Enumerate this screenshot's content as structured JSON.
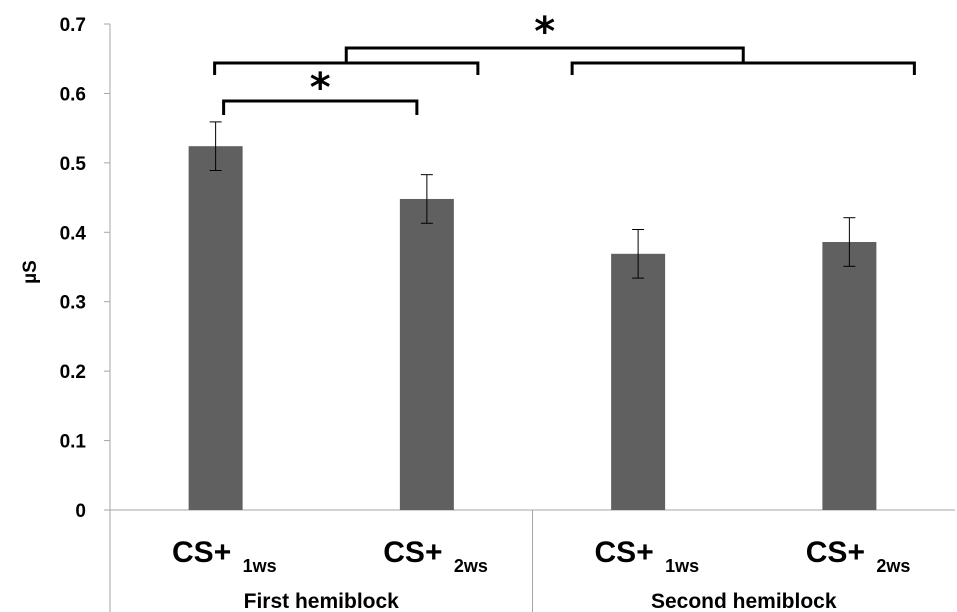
{
  "chart_data": {
    "type": "bar",
    "title": "",
    "ylabel": "µS",
    "xlabel": "",
    "ylim": [
      0,
      0.7
    ],
    "yticks": [
      "0",
      "0.1",
      "0.2",
      "0.3",
      "0.4",
      "0.5",
      "0.6",
      "0.7"
    ],
    "grid": false,
    "legend": "none",
    "bar_color": "#606060",
    "categories": [
      {
        "main": "CS+",
        "sub": "1ws",
        "group": "First hemiblock"
      },
      {
        "main": "CS+",
        "sub": "2ws",
        "group": "First hemiblock"
      },
      {
        "main": "CS+",
        "sub": "1ws",
        "group": "Second hemiblock"
      },
      {
        "main": "CS+",
        "sub": "2ws",
        "group": "Second hemiblock"
      }
    ],
    "groups": [
      "First hemiblock",
      "Second hemiblock"
    ],
    "values": [
      0.524,
      0.448,
      0.369,
      0.386
    ],
    "errors": [
      0.035,
      0.035,
      0.035,
      0.035
    ],
    "significance": [
      {
        "between": [
          0,
          1
        ],
        "label": "*"
      },
      {
        "between_groups": [
          0,
          1
        ],
        "label": "*"
      }
    ]
  }
}
